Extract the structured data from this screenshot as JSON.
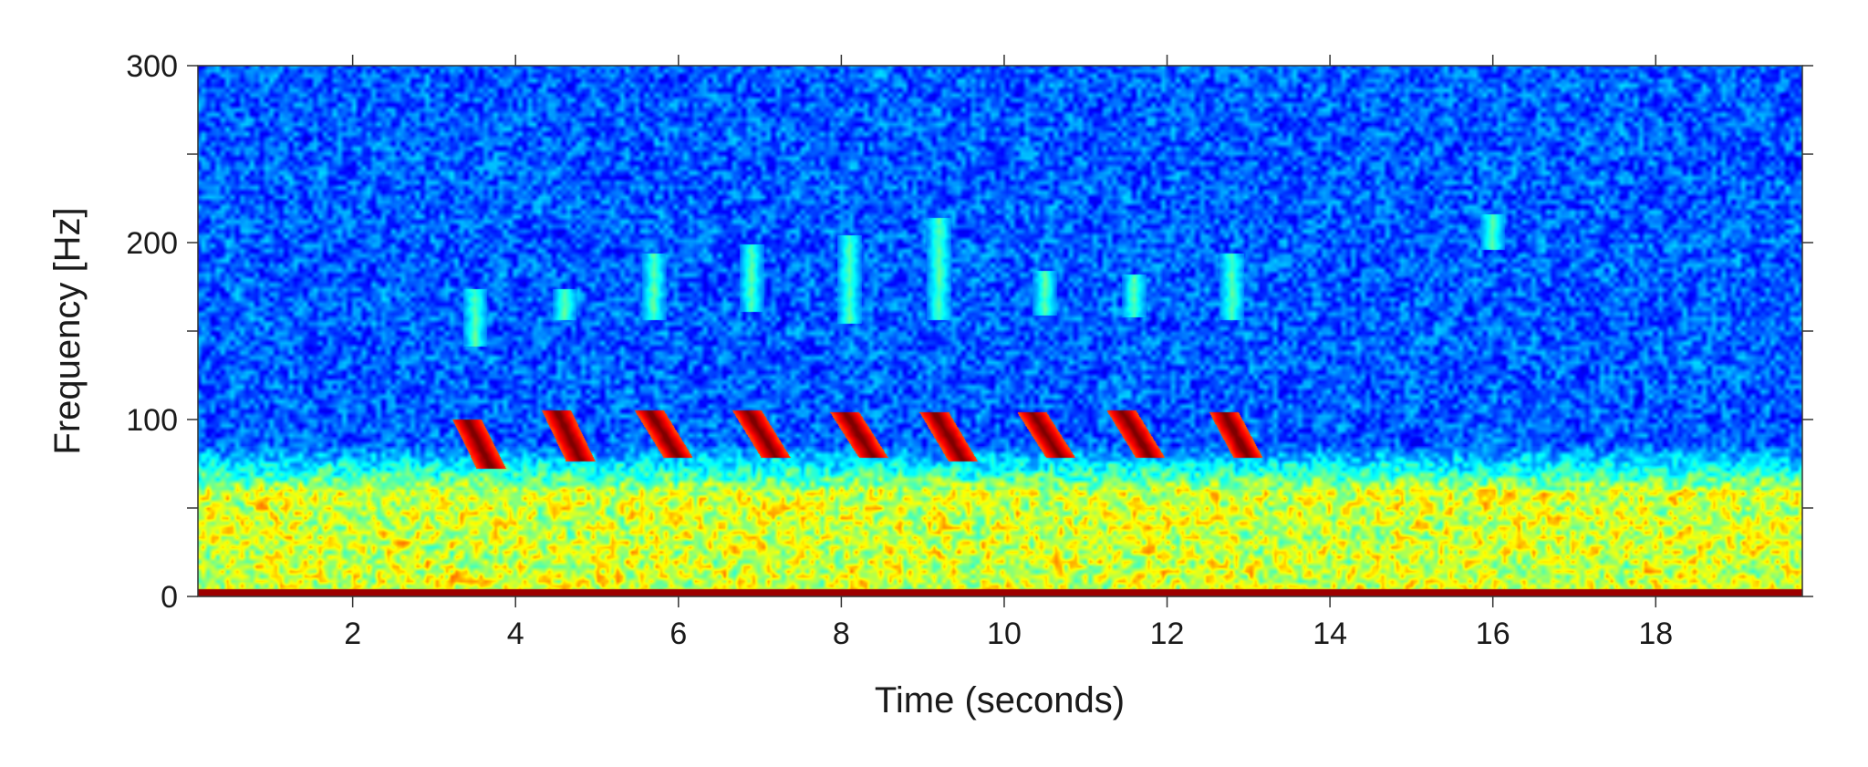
{
  "chart_data": {
    "type": "heatmap",
    "title": "",
    "xlabel": "Time (seconds)",
    "ylabel": "Frequency [Hz]",
    "xlim": [
      0.1,
      19.8
    ],
    "ylim": [
      0,
      300
    ],
    "xticks": [
      2,
      4,
      6,
      8,
      10,
      12,
      14,
      16,
      18
    ],
    "yticks": [
      0,
      100,
      200,
      300
    ],
    "y_minor_ticks": [
      50,
      150,
      250
    ],
    "colormap": "jet",
    "grid": false,
    "legend": "none",
    "colors": {
      "low": "#00008f",
      "mid": "#00ffff",
      "high": "#ff0000",
      "peak": "#800000"
    },
    "noise_floor_band_hz": [
      0,
      60
    ],
    "strong_calls": [
      {
        "t_start": 3.3,
        "t_end": 3.8,
        "f_low": 72,
        "f_high": 100
      },
      {
        "t_start": 4.4,
        "t_end": 4.9,
        "f_low": 76,
        "f_high": 105
      },
      {
        "t_start": 5.5,
        "t_end": 6.1,
        "f_low": 78,
        "f_high": 105
      },
      {
        "t_start": 6.7,
        "t_end": 7.3,
        "f_low": 78,
        "f_high": 105
      },
      {
        "t_start": 7.9,
        "t_end": 8.5,
        "f_low": 78,
        "f_high": 104
      },
      {
        "t_start": 9.0,
        "t_end": 9.6,
        "f_low": 76,
        "f_high": 104
      },
      {
        "t_start": 10.2,
        "t_end": 10.8,
        "f_low": 78,
        "f_high": 104
      },
      {
        "t_start": 11.3,
        "t_end": 11.9,
        "f_low": 78,
        "f_high": 105
      },
      {
        "t_start": 12.6,
        "t_end": 13.1,
        "f_low": 78,
        "f_high": 104
      }
    ],
    "harmonic_traces": [
      {
        "t": 3.5,
        "f_low": 145,
        "f_high": 170
      },
      {
        "t": 4.6,
        "f_low": 160,
        "f_high": 170
      },
      {
        "t": 5.7,
        "f_low": 160,
        "f_high": 190
      },
      {
        "t": 6.9,
        "f_low": 165,
        "f_high": 195
      },
      {
        "t": 8.1,
        "f_low": 158,
        "f_high": 200
      },
      {
        "t": 9.2,
        "f_low": 160,
        "f_high": 210
      },
      {
        "t": 10.5,
        "f_low": 163,
        "f_high": 180
      },
      {
        "t": 11.6,
        "f_low": 162,
        "f_high": 178
      },
      {
        "t": 12.8,
        "f_low": 160,
        "f_high": 190
      },
      {
        "t": 16.0,
        "f_low": 200,
        "f_high": 212
      }
    ]
  }
}
